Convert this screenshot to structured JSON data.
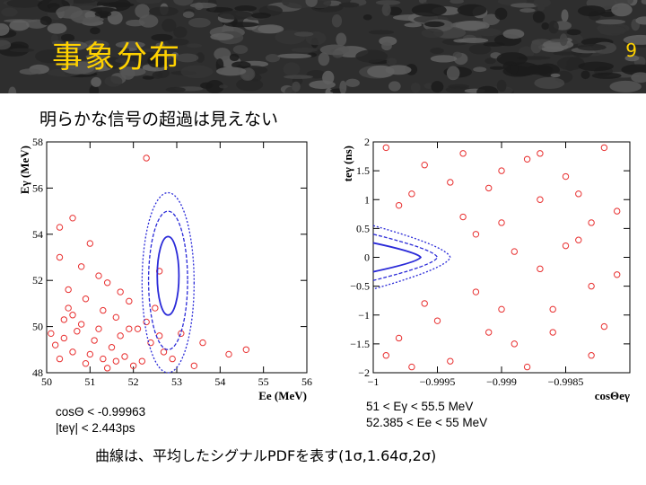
{
  "slide": {
    "title": "事象分布",
    "page_number": "9",
    "subtitle": "明らかな信号の超過は見えない",
    "left_cuts": [
      "cosΘ < -0.99963",
      "|teγ| < 2.443ps"
    ],
    "right_cuts": [
      "51 < Eγ < 55.5 MeV",
      "52.385 < Ee < 55 MeV"
    ],
    "caption": "曲線は、平均したシグナルPDFを表す(1σ,1.64σ,2σ)"
  },
  "colors": {
    "title": "#ffd200",
    "points": "#e83030",
    "contour": "#2a2ad8"
  },
  "chart_data": [
    {
      "type": "scatter",
      "title": "",
      "xlabel": "Ee (MeV)",
      "ylabel": "Eγ (MeV)",
      "xlim": [
        50,
        56
      ],
      "ylim": [
        48,
        58
      ],
      "x_ticks": [
        "50",
        "51",
        "52",
        "53",
        "54",
        "55",
        "56"
      ],
      "y_ticks": [
        "48",
        "50",
        "52",
        "54",
        "56",
        "58"
      ],
      "contours": [
        {
          "level": "1σ",
          "center": [
            52.8,
            52.2
          ],
          "half_width": [
            0.25,
            1.7
          ]
        },
        {
          "level": "1.64σ",
          "center": [
            52.8,
            52.0
          ],
          "half_width": [
            0.45,
            3.0
          ]
        },
        {
          "level": "2σ",
          "center": [
            52.8,
            51.9
          ],
          "half_width": [
            0.6,
            3.9
          ]
        }
      ],
      "series": [
        {
          "name": "events",
          "points": [
            [
              52.3,
              57.3
            ],
            [
              51.0,
              53.6
            ],
            [
              50.6,
              54.7
            ],
            [
              50.3,
              54.3
            ],
            [
              51.4,
              51.9
            ],
            [
              51.7,
              51.5
            ],
            [
              51.2,
              52.2
            ],
            [
              50.8,
              52.6
            ],
            [
              50.5,
              51.6
            ],
            [
              51.9,
              51.1
            ],
            [
              52.5,
              50.8
            ],
            [
              52.6,
              52.4
            ],
            [
              53.1,
              49.7
            ],
            [
              53.6,
              49.3
            ],
            [
              54.2,
              48.8
            ],
            [
              54.6,
              49.0
            ],
            [
              53.4,
              48.3
            ],
            [
              52.1,
              49.9
            ],
            [
              51.6,
              50.4
            ],
            [
              50.3,
              53.0
            ],
            [
              50.9,
              51.2
            ],
            [
              51.3,
              50.7
            ],
            [
              50.4,
              50.3
            ],
            [
              50.7,
              49.8
            ],
            [
              51.1,
              49.4
            ],
            [
              50.2,
              49.2
            ],
            [
              50.6,
              48.9
            ],
            [
              51.5,
              49.1
            ],
            [
              51.8,
              48.7
            ],
            [
              52.2,
              48.5
            ],
            [
              52.7,
              48.9
            ],
            [
              52.4,
              49.3
            ],
            [
              50.9,
              48.4
            ],
            [
              50.3,
              48.6
            ],
            [
              51.4,
              48.2
            ],
            [
              52.0,
              48.3
            ],
            [
              51.2,
              49.9
            ],
            [
              50.5,
              50.8
            ],
            [
              50.8,
              50.1
            ],
            [
              51.7,
              49.6
            ],
            [
              52.3,
              50.2
            ],
            [
              51.0,
              48.8
            ],
            [
              50.1,
              49.7
            ],
            [
              52.9,
              48.6
            ],
            [
              51.6,
              48.5
            ],
            [
              50.4,
              49.5
            ],
            [
              51.9,
              49.9
            ],
            [
              50.6,
              50.5
            ],
            [
              52.6,
              49.6
            ],
            [
              51.3,
              48.6
            ]
          ]
        }
      ]
    },
    {
      "type": "scatter",
      "title": "",
      "xlabel": "cosΘeγ",
      "ylabel": "teγ (ns)",
      "xlim": [
        -1,
        -0.998
      ],
      "ylim": [
        -2,
        2
      ],
      "x_ticks": [
        "−1",
        "−0.9995",
        "−0.999",
        "−0.9985"
      ],
      "y_ticks": [
        "−2",
        "−1.5",
        "−1",
        "−0.5",
        "0",
        "0.5",
        "1",
        "1.5",
        "2"
      ],
      "contours": [
        {
          "level": "1σ",
          "tip": [
            -0.99963,
            0
          ],
          "half_height": 0.25
        },
        {
          "level": "1.64σ",
          "tip": [
            -0.9995,
            0
          ],
          "half_height": 0.4
        },
        {
          "level": "2σ",
          "tip": [
            -0.9994,
            0
          ],
          "half_height": 0.55
        }
      ],
      "series": [
        {
          "name": "events",
          "points": [
            [
              -0.9999,
              1.9
            ],
            [
              -0.9996,
              1.6
            ],
            [
              -0.9993,
              1.8
            ],
            [
              -0.9991,
              1.2
            ],
            [
              -0.9988,
              1.7
            ],
            [
              -0.9985,
              1.4
            ],
            [
              -0.9982,
              1.9
            ],
            [
              -0.9981,
              0.8
            ],
            [
              -0.9984,
              0.3
            ],
            [
              -0.9987,
              -0.2
            ],
            [
              -0.999,
              0.6
            ],
            [
              -0.9992,
              -0.6
            ],
            [
              -0.9995,
              -1.1
            ],
            [
              -0.9998,
              -1.4
            ],
            [
              -0.9994,
              -1.8
            ],
            [
              -0.9989,
              -1.5
            ],
            [
              -0.9986,
              -0.9
            ],
            [
              -0.9983,
              -1.7
            ],
            [
              -0.9982,
              -1.2
            ],
            [
              -0.9997,
              1.1
            ],
            [
              -0.9998,
              0.9
            ],
            [
              -0.9993,
              0.7
            ],
            [
              -0.999,
              1.5
            ],
            [
              -0.9987,
              1.0
            ],
            [
              -0.9985,
              0.2
            ],
            [
              -0.9983,
              -0.5
            ],
            [
              -0.9988,
              -1.9
            ],
            [
              -0.9991,
              -1.3
            ],
            [
              -0.9996,
              -0.8
            ],
            [
              -0.9999,
              -1.7
            ],
            [
              -0.9994,
              1.3
            ],
            [
              -0.9989,
              0.1
            ],
            [
              -0.9986,
              -1.3
            ],
            [
              -0.9984,
              1.1
            ],
            [
              -0.9981,
              -0.3
            ],
            [
              -0.9992,
              0.4
            ],
            [
              -0.9997,
              -1.9
            ],
            [
              -0.999,
              -0.9
            ],
            [
              -0.9987,
              1.8
            ],
            [
              -0.9983,
              0.6
            ]
          ]
        }
      ]
    }
  ]
}
